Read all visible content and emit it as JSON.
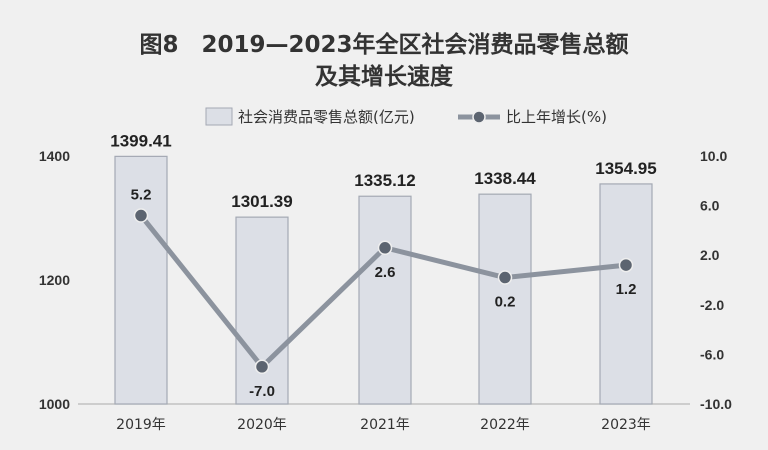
{
  "chart_data": {
    "type": "bar+line",
    "title_line1": "图8　2019—2023年全区社会消费品零售总额",
    "title_line2": "及其增长速度",
    "categories": [
      "2019年",
      "2020年",
      "2021年",
      "2022年",
      "2023年"
    ],
    "series": [
      {
        "name": "社会消费品零售总额(亿元)",
        "type": "bar",
        "axis": "left",
        "values": [
          1399.41,
          1301.39,
          1335.12,
          1338.44,
          1354.95
        ],
        "labels": [
          "1399.41",
          "1301.39",
          "1335.12",
          "1338.44",
          "1354.95"
        ]
      },
      {
        "name": "比上年增长(%)",
        "type": "line",
        "axis": "right",
        "values": [
          5.2,
          -7.0,
          2.6,
          0.2,
          1.2
        ],
        "labels": [
          "5.2",
          "-7.0",
          "2.6",
          "0.2",
          "1.2"
        ]
      }
    ],
    "y_left": {
      "min": 1000,
      "max": 1400,
      "ticks": [
        1000,
        1200,
        1400
      ],
      "tick_labels": [
        "1000",
        "1200",
        "1400"
      ]
    },
    "y_right": {
      "min": -10,
      "max": 10,
      "ticks": [
        -10,
        -6,
        -2,
        2,
        6,
        10
      ],
      "tick_labels": [
        "-10.0",
        "-6.0",
        "-2.0",
        "2.0",
        "6.0",
        "10.0"
      ]
    },
    "legend_position": "top-center",
    "grid": false,
    "colors": {
      "bar_fill": "#dcdfe6",
      "bar_stroke": "#a4a9b3",
      "line": "#8c939e",
      "marker": "#5c6470",
      "background": "#f0f0f0"
    }
  }
}
